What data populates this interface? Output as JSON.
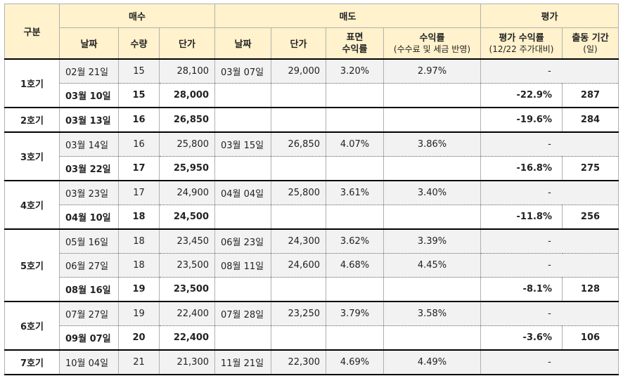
{
  "header": {
    "col_group": "구분",
    "buy": "매수",
    "sell": "매도",
    "eval": "평가",
    "buy_date": "날짜",
    "buy_qty": "수량",
    "buy_price": "단가",
    "sell_date": "날짜",
    "sell_price": "단가",
    "surface_line1": "표면",
    "surface_line2": "수익률",
    "return_line1": "수익률",
    "return_line2": "(수수료 및 세금 반영)",
    "eval_return_line1": "평가 수익률",
    "eval_return_line2": "(12/22 주가대비)",
    "period_line1": "출동 기간",
    "period_line2": "(일)"
  },
  "groups": [
    {
      "name": "1호기",
      "rows": [
        {
          "buy_date": "02월 21일",
          "qty": "15",
          "buy_price": "28,100",
          "sell_date": "03월 07일",
          "sell_price": "29,000",
          "surface": "3.20%",
          "ret": "2.97%",
          "eval": "-",
          "days": "",
          "bold": false,
          "gray": true
        },
        {
          "buy_date": "03월 10일",
          "qty": "15",
          "buy_price": "28,000",
          "sell_date": "",
          "sell_price": "",
          "surface": "",
          "ret": "",
          "eval": "-22.9%",
          "days": "287",
          "bold": true,
          "gray": false
        }
      ]
    },
    {
      "name": "2호기",
      "rows": [
        {
          "buy_date": "03월 13일",
          "qty": "16",
          "buy_price": "26,850",
          "sell_date": "",
          "sell_price": "",
          "surface": "",
          "ret": "",
          "eval": "-19.6%",
          "days": "284",
          "bold": true,
          "gray": false
        }
      ]
    },
    {
      "name": "3호기",
      "rows": [
        {
          "buy_date": "03월 14일",
          "qty": "16",
          "buy_price": "25,800",
          "sell_date": "03월 15일",
          "sell_price": "26,850",
          "surface": "4.07%",
          "ret": "3.86%",
          "eval": "-",
          "days": "",
          "bold": false,
          "gray": true
        },
        {
          "buy_date": "03월 22일",
          "qty": "17",
          "buy_price": "25,950",
          "sell_date": "",
          "sell_price": "",
          "surface": "",
          "ret": "",
          "eval": "-16.8%",
          "days": "275",
          "bold": true,
          "gray": false
        }
      ]
    },
    {
      "name": "4호기",
      "rows": [
        {
          "buy_date": "03월 23일",
          "qty": "17",
          "buy_price": "24,900",
          "sell_date": "04월 04일",
          "sell_price": "25,800",
          "surface": "3.61%",
          "ret": "3.40%",
          "eval": "-",
          "days": "",
          "bold": false,
          "gray": true
        },
        {
          "buy_date": "04월 10일",
          "qty": "18",
          "buy_price": "24,500",
          "sell_date": "",
          "sell_price": "",
          "surface": "",
          "ret": "",
          "eval": "-11.8%",
          "days": "256",
          "bold": true,
          "gray": false
        }
      ]
    },
    {
      "name": "5호기",
      "rows": [
        {
          "buy_date": "05월 16일",
          "qty": "18",
          "buy_price": "23,450",
          "sell_date": "06월 23일",
          "sell_price": "24,300",
          "surface": "3.62%",
          "ret": "3.39%",
          "eval": "-",
          "days": "",
          "bold": false,
          "gray": true
        },
        {
          "buy_date": "06월 27일",
          "qty": "18",
          "buy_price": "23,500",
          "sell_date": "08월 11일",
          "sell_price": "24,600",
          "surface": "4.68%",
          "ret": "4.45%",
          "eval": "-",
          "days": "",
          "bold": false,
          "gray": true
        },
        {
          "buy_date": "08월 16일",
          "qty": "19",
          "buy_price": "23,500",
          "sell_date": "",
          "sell_price": "",
          "surface": "",
          "ret": "",
          "eval": "-8.1%",
          "days": "128",
          "bold": true,
          "gray": false
        }
      ]
    },
    {
      "name": "6호기",
      "rows": [
        {
          "buy_date": "07월 27일",
          "qty": "19",
          "buy_price": "22,400",
          "sell_date": "07월 28일",
          "sell_price": "23,250",
          "surface": "3.79%",
          "ret": "3.58%",
          "eval": "-",
          "days": "",
          "bold": false,
          "gray": true
        },
        {
          "buy_date": "09월 07일",
          "qty": "20",
          "buy_price": "22,400",
          "sell_date": "",
          "sell_price": "",
          "surface": "",
          "ret": "",
          "eval": "-3.6%",
          "days": "106",
          "bold": true,
          "gray": false
        }
      ]
    },
    {
      "name": "7호기",
      "rows": [
        {
          "buy_date": "10월 04일",
          "qty": "21",
          "buy_price": "21,300",
          "sell_date": "11월 21일",
          "sell_price": "22,300",
          "surface": "4.69%",
          "ret": "4.49%",
          "eval": "-",
          "days": "",
          "bold": false,
          "gray": true
        }
      ]
    }
  ]
}
